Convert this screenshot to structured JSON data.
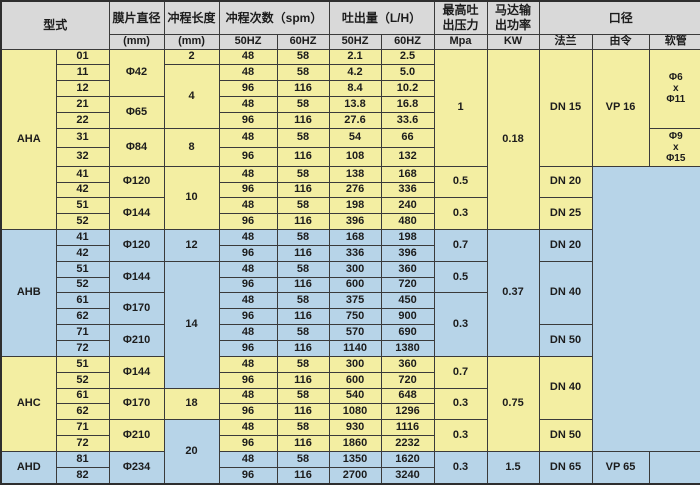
{
  "colors": {
    "section_yellow": "#f3eea2",
    "section_blue": "#b7d4e8",
    "header_gray": "#d9d9d9",
    "border": "#3a3a3a"
  },
  "header": {
    "model_type": "型式",
    "diaphragm_diameter": "膜片直径",
    "diaphragm_unit": "(mm)",
    "stroke_length": "冲程长度",
    "stroke_length_unit": "(mm)",
    "stroke_rate": "冲程次数（spm）",
    "stroke_rate_50hz": "50HZ",
    "stroke_rate_60hz": "60HZ",
    "discharge": "吐出量（L/H）",
    "discharge_50hz": "50HZ",
    "discharge_60hz": "60HZ",
    "max_pressure": "最高吐\n出压力",
    "max_pressure_unit": "Mpa",
    "motor_power": "马达输\n出功率",
    "motor_power_unit": "KW",
    "caliber": "口径",
    "caliber_flange": "法兰",
    "caliber_union": "由令",
    "caliber_hose": "软管"
  },
  "body": {
    "rows": [
      {
        "bg": "Y",
        "cells": [
          {
            "t": "AHA",
            "r": 11,
            "n": "model-group-cell"
          },
          {
            "t": "01",
            "n": "model-cell"
          },
          {
            "t": "Φ42",
            "r": 3
          },
          {
            "t": "2"
          },
          {
            "t": "48"
          },
          {
            "t": "58"
          },
          {
            "t": "2.1"
          },
          {
            "t": "2.5"
          },
          {
            "t": "1",
            "r": 7
          },
          {
            "t": "0.18",
            "r": 11
          },
          {
            "t": "DN 15",
            "r": 7
          },
          {
            "t": "VP 16",
            "r": 7
          },
          {
            "t": "Φ6\nx\nΦ11",
            "r": 5,
            "s": 1
          }
        ]
      },
      {
        "bg": "Y",
        "cells": [
          {
            "t": "11",
            "n": "model-cell"
          },
          {
            "t": "4",
            "r": 4
          },
          {
            "t": "48"
          },
          {
            "t": "58"
          },
          {
            "t": "4.2"
          },
          {
            "t": "5.0"
          }
        ]
      },
      {
        "bg": "Y",
        "cells": [
          {
            "t": "12",
            "n": "model-cell"
          },
          {
            "t": "96"
          },
          {
            "t": "116"
          },
          {
            "t": "8.4"
          },
          {
            "t": "10.2"
          }
        ]
      },
      {
        "bg": "Y",
        "cells": [
          {
            "t": "21",
            "n": "model-cell"
          },
          {
            "t": "Φ65",
            "r": 2
          },
          {
            "t": "48"
          },
          {
            "t": "58"
          },
          {
            "t": "13.8"
          },
          {
            "t": "16.8"
          }
        ]
      },
      {
        "bg": "Y",
        "cells": [
          {
            "t": "22",
            "n": "model-cell"
          },
          {
            "t": "96"
          },
          {
            "t": "116"
          },
          {
            "t": "27.6"
          },
          {
            "t": "33.6"
          }
        ]
      },
      {
        "bg": "Y",
        "cells": [
          {
            "t": "31",
            "n": "model-cell"
          },
          {
            "t": "Φ84",
            "r": 2
          },
          {
            "t": "8",
            "r": 2
          },
          {
            "t": "48"
          },
          {
            "t": "58"
          },
          {
            "t": "54"
          },
          {
            "t": "66"
          },
          {
            "t": "Φ9\nx\nΦ15",
            "r": 2,
            "s": 1
          }
        ]
      },
      {
        "bg": "Y",
        "cells": [
          {
            "t": "32",
            "n": "model-cell"
          },
          {
            "t": "96"
          },
          {
            "t": "116"
          },
          {
            "t": "108"
          },
          {
            "t": "132"
          }
        ]
      },
      {
        "bg": "Y",
        "cells": [
          {
            "t": "41",
            "n": "model-cell"
          },
          {
            "t": "Φ120",
            "r": 2
          },
          {
            "t": "10",
            "r": 4
          },
          {
            "t": "48"
          },
          {
            "t": "58"
          },
          {
            "t": "138"
          },
          {
            "t": "168"
          },
          {
            "t": "0.5",
            "r": 2
          },
          {
            "t": "DN 20",
            "r": 2
          },
          {
            "t": "",
            "r": 18,
            "c": 2,
            "bg": "B",
            "n": "merged-empty-cell"
          }
        ]
      },
      {
        "bg": "Y",
        "cells": [
          {
            "t": "42",
            "n": "model-cell"
          },
          {
            "t": "96"
          },
          {
            "t": "116"
          },
          {
            "t": "276"
          },
          {
            "t": "336"
          }
        ]
      },
      {
        "bg": "Y",
        "cells": [
          {
            "t": "51",
            "n": "model-cell"
          },
          {
            "t": "Φ144",
            "r": 2
          },
          {
            "t": "48"
          },
          {
            "t": "58"
          },
          {
            "t": "198"
          },
          {
            "t": "240"
          },
          {
            "t": "0.3",
            "r": 2
          },
          {
            "t": "DN 25",
            "r": 2
          }
        ]
      },
      {
        "bg": "Y",
        "cells": [
          {
            "t": "52",
            "n": "model-cell"
          },
          {
            "t": "96"
          },
          {
            "t": "116"
          },
          {
            "t": "396"
          },
          {
            "t": "480"
          }
        ]
      },
      {
        "bg": "B",
        "cells": [
          {
            "t": "AHB",
            "r": 8,
            "n": "model-group-cell"
          },
          {
            "t": "41",
            "n": "model-cell"
          },
          {
            "t": "Φ120",
            "r": 2
          },
          {
            "t": "12",
            "r": 2
          },
          {
            "t": "48"
          },
          {
            "t": "58"
          },
          {
            "t": "168"
          },
          {
            "t": "198"
          },
          {
            "t": "0.7",
            "r": 2
          },
          {
            "t": "0.37",
            "r": 8
          },
          {
            "t": "DN 20",
            "r": 2
          }
        ]
      },
      {
        "bg": "B",
        "cells": [
          {
            "t": "42",
            "n": "model-cell"
          },
          {
            "t": "96"
          },
          {
            "t": "116"
          },
          {
            "t": "336"
          },
          {
            "t": "396"
          }
        ]
      },
      {
        "bg": "B",
        "cells": [
          {
            "t": "51",
            "n": "model-cell"
          },
          {
            "t": "Φ144",
            "r": 2
          },
          {
            "t": "14",
            "r": 8,
            "bg": "B"
          },
          {
            "t": "48"
          },
          {
            "t": "58"
          },
          {
            "t": "300"
          },
          {
            "t": "360"
          },
          {
            "t": "0.5",
            "r": 2
          },
          {
            "t": "DN 40",
            "r": 4
          }
        ]
      },
      {
        "bg": "B",
        "cells": [
          {
            "t": "52",
            "n": "model-cell"
          },
          {
            "t": "96"
          },
          {
            "t": "116"
          },
          {
            "t": "600"
          },
          {
            "t": "720"
          }
        ]
      },
      {
        "bg": "B",
        "cells": [
          {
            "t": "61",
            "n": "model-cell"
          },
          {
            "t": "Φ170",
            "r": 2
          },
          {
            "t": "48"
          },
          {
            "t": "58"
          },
          {
            "t": "375"
          },
          {
            "t": "450"
          },
          {
            "t": "0.3",
            "r": 4
          }
        ]
      },
      {
        "bg": "B",
        "cells": [
          {
            "t": "62",
            "n": "model-cell"
          },
          {
            "t": "96"
          },
          {
            "t": "116"
          },
          {
            "t": "750"
          },
          {
            "t": "900"
          }
        ]
      },
      {
        "bg": "B",
        "cells": [
          {
            "t": "71",
            "n": "model-cell"
          },
          {
            "t": "Φ210",
            "r": 2
          },
          {
            "t": "48"
          },
          {
            "t": "58"
          },
          {
            "t": "570"
          },
          {
            "t": "690"
          },
          {
            "t": "DN 50",
            "r": 2
          }
        ]
      },
      {
        "bg": "B",
        "cells": [
          {
            "t": "72",
            "n": "model-cell"
          },
          {
            "t": "96"
          },
          {
            "t": "116"
          },
          {
            "t": "1140"
          },
          {
            "t": "1380"
          }
        ]
      },
      {
        "bg": "Y",
        "cells": [
          {
            "t": "AHC",
            "r": 6,
            "n": "model-group-cell"
          },
          {
            "t": "51",
            "n": "model-cell"
          },
          {
            "t": "Φ144",
            "r": 2
          },
          {
            "t": "48"
          },
          {
            "t": "58"
          },
          {
            "t": "300"
          },
          {
            "t": "360"
          },
          {
            "t": "0.7",
            "r": 2
          },
          {
            "t": "0.75",
            "r": 6
          },
          {
            "t": "DN 40",
            "r": 4
          }
        ]
      },
      {
        "bg": "Y",
        "cells": [
          {
            "t": "52",
            "n": "model-cell"
          },
          {
            "t": "96"
          },
          {
            "t": "116"
          },
          {
            "t": "600"
          },
          {
            "t": "720"
          }
        ]
      },
      {
        "bg": "Y",
        "cells": [
          {
            "t": "61",
            "n": "model-cell"
          },
          {
            "t": "Φ170",
            "r": 2
          },
          {
            "t": "18",
            "r": 2
          },
          {
            "t": "48"
          },
          {
            "t": "58"
          },
          {
            "t": "540"
          },
          {
            "t": "648"
          },
          {
            "t": "0.3",
            "r": 2
          }
        ]
      },
      {
        "bg": "Y",
        "cells": [
          {
            "t": "62",
            "n": "model-cell"
          },
          {
            "t": "96"
          },
          {
            "t": "116"
          },
          {
            "t": "1080"
          },
          {
            "t": "1296"
          }
        ]
      },
      {
        "bg": "Y",
        "cells": [
          {
            "t": "71",
            "n": "model-cell"
          },
          {
            "t": "Φ210",
            "r": 2
          },
          {
            "t": "20",
            "r": 4,
            "bg": "B"
          },
          {
            "t": "48"
          },
          {
            "t": "58"
          },
          {
            "t": "930"
          },
          {
            "t": "1116"
          },
          {
            "t": "0.3",
            "r": 2
          },
          {
            "t": "DN 50",
            "r": 2
          }
        ]
      },
      {
        "bg": "Y",
        "cells": [
          {
            "t": "72",
            "n": "model-cell"
          },
          {
            "t": "96"
          },
          {
            "t": "116"
          },
          {
            "t": "1860"
          },
          {
            "t": "2232"
          }
        ]
      },
      {
        "bg": "B",
        "cells": [
          {
            "t": "AHD",
            "r": 2,
            "n": "model-group-cell"
          },
          {
            "t": "81",
            "n": "model-cell"
          },
          {
            "t": "Φ234",
            "r": 2
          },
          {
            "t": "48"
          },
          {
            "t": "58"
          },
          {
            "t": "1350"
          },
          {
            "t": "1620"
          },
          {
            "t": "0.3",
            "r": 2
          },
          {
            "t": "1.5",
            "r": 2
          },
          {
            "t": "DN 65",
            "r": 2
          },
          {
            "t": "VP 65",
            "r": 2
          },
          {
            "t": "",
            "r": 2,
            "n": "empty-hose-cell"
          }
        ]
      },
      {
        "bg": "B",
        "cells": [
          {
            "t": "82",
            "n": "model-cell"
          },
          {
            "t": "96"
          },
          {
            "t": "116"
          },
          {
            "t": "2700"
          },
          {
            "t": "3240"
          }
        ]
      }
    ]
  }
}
